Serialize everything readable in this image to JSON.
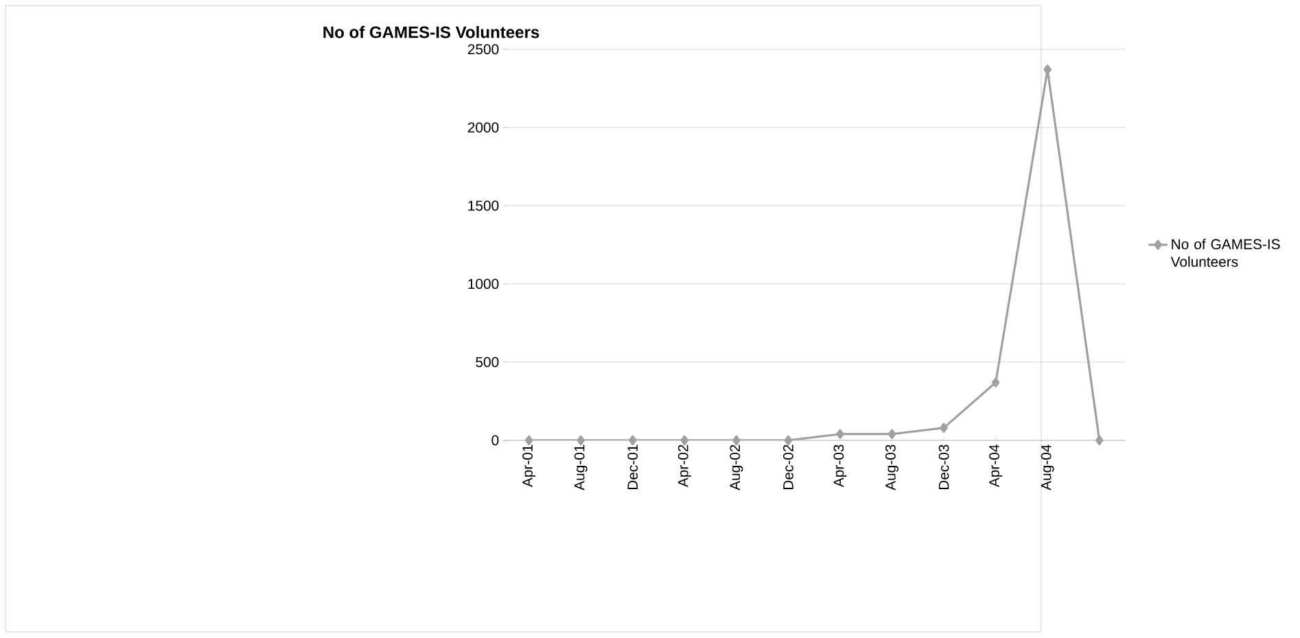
{
  "chart_data": {
    "type": "line",
    "title": "No of GAMES-IS Volunteers",
    "categories": [
      "Apr-01",
      "Aug-01",
      "Dec-01",
      "Apr-02",
      "Aug-02",
      "Dec-02",
      "Apr-03",
      "Aug-03",
      "Dec-03",
      "Apr-04",
      "Aug-04",
      null
    ],
    "series": [
      {
        "name": "No of GAMES-IS Volunteers",
        "color": "#a0a0a0",
        "values": [
          0,
          0,
          0,
          0,
          0,
          0,
          40,
          40,
          80,
          370,
          2370,
          0
        ]
      }
    ],
    "ylim": [
      0,
      2500
    ],
    "yticks": [
      0,
      500,
      1000,
      1500,
      2000,
      2500
    ],
    "grid": "y",
    "legend": "right",
    "marker": "diamond",
    "line_style": "solid"
  }
}
